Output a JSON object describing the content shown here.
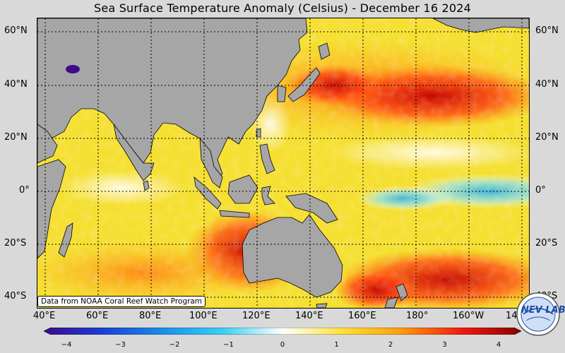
{
  "title": "Sea Surface Temperature Anomaly (Celsius) - December 16 2024",
  "latitude_labels": [
    "60°N",
    "40°N",
    "20°N",
    "0°",
    "20°S",
    "40°S"
  ],
  "longitude_labels": [
    "40°E",
    "60°E",
    "80°E",
    "100°E",
    "120°E",
    "140°E",
    "160°E",
    "180°",
    "160°W",
    "14"
  ],
  "credit": "Data from NOAA Coral Reef Watch Program",
  "colorbar": {
    "ticks": [
      "−4",
      "−3",
      "−2",
      "−1",
      "0",
      "1",
      "2",
      "3",
      "4"
    ],
    "colors": [
      "#3d0a8c",
      "#1a3fd6",
      "#1a8fe8",
      "#38d0f5",
      "#ffffff",
      "#ffe23a",
      "#ff9a10",
      "#f01a10",
      "#8a0000"
    ]
  },
  "logo": {
    "text": "NEV LAB"
  },
  "colors": {
    "land": "#a6a6a6",
    "ocean_base": "#f2e233",
    "grid": "#000000"
  }
}
